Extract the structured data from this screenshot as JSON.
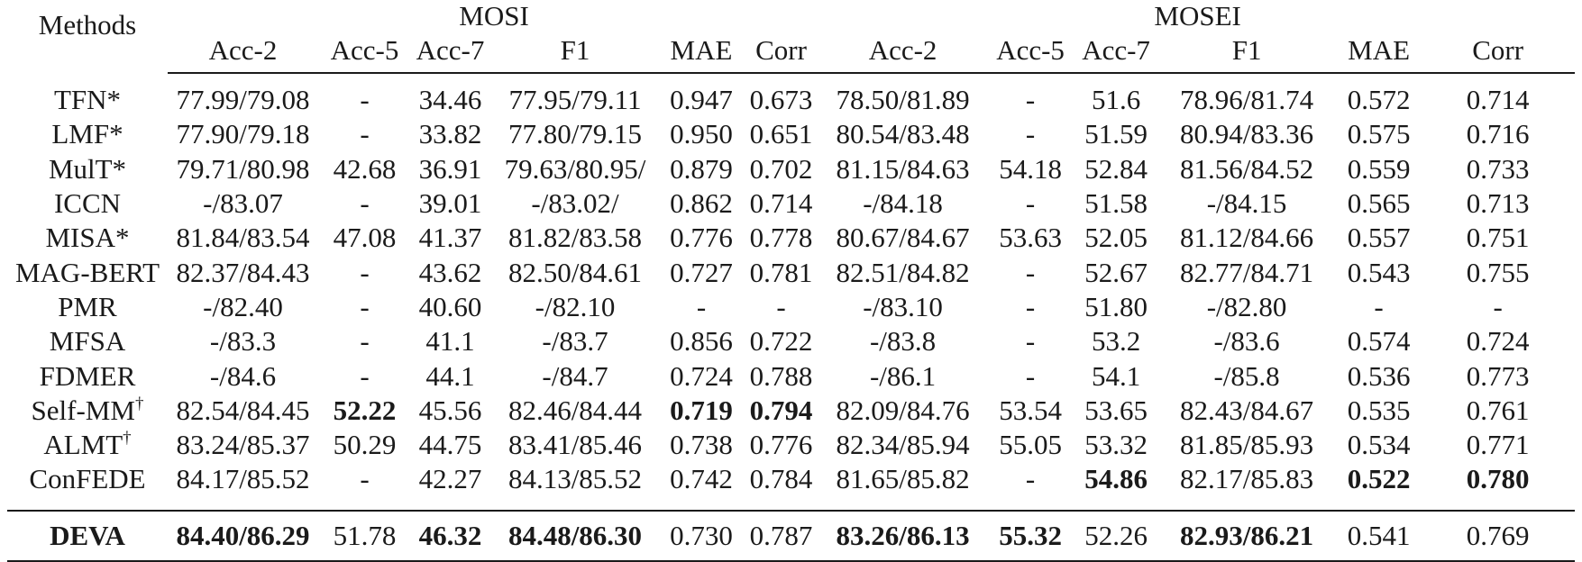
{
  "table": {
    "methods_header": "Methods",
    "groups": [
      "MOSI",
      "MOSEI"
    ],
    "columns": [
      "Acc-2",
      "Acc-5",
      "Acc-7",
      "F1",
      "MAE",
      "Corr",
      "Acc-2",
      "Acc-5",
      "Acc-7",
      "F1",
      "MAE",
      "Corr"
    ],
    "rows": [
      {
        "method": "TFN*",
        "sup": "",
        "bold_method": false,
        "cells": [
          {
            "v": "77.99/79.08",
            "b": false
          },
          {
            "v": "-",
            "b": false
          },
          {
            "v": "34.46",
            "b": false
          },
          {
            "v": "77.95/79.11",
            "b": false
          },
          {
            "v": "0.947",
            "b": false
          },
          {
            "v": "0.673",
            "b": false
          },
          {
            "v": "78.50/81.89",
            "b": false
          },
          {
            "v": "-",
            "b": false
          },
          {
            "v": "51.6",
            "b": false
          },
          {
            "v": "78.96/81.74",
            "b": false
          },
          {
            "v": "0.572",
            "b": false
          },
          {
            "v": "0.714",
            "b": false
          }
        ]
      },
      {
        "method": "LMF*",
        "sup": "",
        "bold_method": false,
        "cells": [
          {
            "v": "77.90/79.18",
            "b": false
          },
          {
            "v": "-",
            "b": false
          },
          {
            "v": "33.82",
            "b": false
          },
          {
            "v": "77.80/79.15",
            "b": false
          },
          {
            "v": "0.950",
            "b": false
          },
          {
            "v": "0.651",
            "b": false
          },
          {
            "v": "80.54/83.48",
            "b": false
          },
          {
            "v": "-",
            "b": false
          },
          {
            "v": "51.59",
            "b": false
          },
          {
            "v": "80.94/83.36",
            "b": false
          },
          {
            "v": "0.575",
            "b": false
          },
          {
            "v": "0.716",
            "b": false
          }
        ]
      },
      {
        "method": "MulT*",
        "sup": "",
        "bold_method": false,
        "cells": [
          {
            "v": "79.71/80.98",
            "b": false
          },
          {
            "v": "42.68",
            "b": false
          },
          {
            "v": "36.91",
            "b": false
          },
          {
            "v": "79.63/80.95/",
            "b": false
          },
          {
            "v": "0.879",
            "b": false
          },
          {
            "v": "0.702",
            "b": false
          },
          {
            "v": "81.15/84.63",
            "b": false
          },
          {
            "v": "54.18",
            "b": false
          },
          {
            "v": "52.84",
            "b": false
          },
          {
            "v": "81.56/84.52",
            "b": false
          },
          {
            "v": "0.559",
            "b": false
          },
          {
            "v": "0.733",
            "b": false
          }
        ]
      },
      {
        "method": "ICCN",
        "sup": "",
        "bold_method": false,
        "cells": [
          {
            "v": "-/83.07",
            "b": false
          },
          {
            "v": "-",
            "b": false
          },
          {
            "v": "39.01",
            "b": false
          },
          {
            "v": "-/83.02/",
            "b": false
          },
          {
            "v": "0.862",
            "b": false
          },
          {
            "v": "0.714",
            "b": false
          },
          {
            "v": "-/84.18",
            "b": false
          },
          {
            "v": "-",
            "b": false
          },
          {
            "v": "51.58",
            "b": false
          },
          {
            "v": "-/84.15",
            "b": false
          },
          {
            "v": "0.565",
            "b": false
          },
          {
            "v": "0.713",
            "b": false
          }
        ]
      },
      {
        "method": "MISA*",
        "sup": "",
        "bold_method": false,
        "cells": [
          {
            "v": "81.84/83.54",
            "b": false
          },
          {
            "v": "47.08",
            "b": false
          },
          {
            "v": "41.37",
            "b": false
          },
          {
            "v": "81.82/83.58",
            "b": false
          },
          {
            "v": "0.776",
            "b": false
          },
          {
            "v": "0.778",
            "b": false
          },
          {
            "v": "80.67/84.67",
            "b": false
          },
          {
            "v": "53.63",
            "b": false
          },
          {
            "v": "52.05",
            "b": false
          },
          {
            "v": "81.12/84.66",
            "b": false
          },
          {
            "v": "0.557",
            "b": false
          },
          {
            "v": "0.751",
            "b": false
          }
        ]
      },
      {
        "method": "MAG-BERT",
        "sup": "",
        "bold_method": false,
        "cells": [
          {
            "v": "82.37/84.43",
            "b": false
          },
          {
            "v": "-",
            "b": false
          },
          {
            "v": "43.62",
            "b": false
          },
          {
            "v": "82.50/84.61",
            "b": false
          },
          {
            "v": "0.727",
            "b": false
          },
          {
            "v": "0.781",
            "b": false
          },
          {
            "v": "82.51/84.82",
            "b": false
          },
          {
            "v": "-",
            "b": false
          },
          {
            "v": "52.67",
            "b": false
          },
          {
            "v": "82.77/84.71",
            "b": false
          },
          {
            "v": "0.543",
            "b": false
          },
          {
            "v": "0.755",
            "b": false
          }
        ]
      },
      {
        "method": "PMR",
        "sup": "",
        "bold_method": false,
        "cells": [
          {
            "v": "-/82.40",
            "b": false
          },
          {
            "v": "-",
            "b": false
          },
          {
            "v": "40.60",
            "b": false
          },
          {
            "v": "-/82.10",
            "b": false
          },
          {
            "v": "-",
            "b": false
          },
          {
            "v": "-",
            "b": false
          },
          {
            "v": "-/83.10",
            "b": false
          },
          {
            "v": "-",
            "b": false
          },
          {
            "v": "51.80",
            "b": false
          },
          {
            "v": "-/82.80",
            "b": false
          },
          {
            "v": "-",
            "b": false
          },
          {
            "v": "-",
            "b": false
          }
        ]
      },
      {
        "method": "MFSA",
        "sup": "",
        "bold_method": false,
        "cells": [
          {
            "v": "-/83.3",
            "b": false
          },
          {
            "v": "-",
            "b": false
          },
          {
            "v": "41.1",
            "b": false
          },
          {
            "v": "-/83.7",
            "b": false
          },
          {
            "v": "0.856",
            "b": false
          },
          {
            "v": "0.722",
            "b": false
          },
          {
            "v": "-/83.8",
            "b": false
          },
          {
            "v": "-",
            "b": false
          },
          {
            "v": "53.2",
            "b": false
          },
          {
            "v": "-/83.6",
            "b": false
          },
          {
            "v": "0.574",
            "b": false
          },
          {
            "v": "0.724",
            "b": false
          }
        ]
      },
      {
        "method": "FDMER",
        "sup": "",
        "bold_method": false,
        "cells": [
          {
            "v": "-/84.6",
            "b": false
          },
          {
            "v": "-",
            "b": false
          },
          {
            "v": "44.1",
            "b": false
          },
          {
            "v": "-/84.7",
            "b": false
          },
          {
            "v": "0.724",
            "b": false
          },
          {
            "v": "0.788",
            "b": false
          },
          {
            "v": "-/86.1",
            "b": false
          },
          {
            "v": "-",
            "b": false
          },
          {
            "v": "54.1",
            "b": false
          },
          {
            "v": "-/85.8",
            "b": false
          },
          {
            "v": "0.536",
            "b": false
          },
          {
            "v": "0.773",
            "b": false
          }
        ]
      },
      {
        "method": "Self-MM",
        "sup": "†",
        "bold_method": false,
        "cells": [
          {
            "v": "82.54/84.45",
            "b": false
          },
          {
            "v": "52.22",
            "b": true
          },
          {
            "v": "45.56",
            "b": false
          },
          {
            "v": "82.46/84.44",
            "b": false
          },
          {
            "v": "0.719",
            "b": true
          },
          {
            "v": "0.794",
            "b": true
          },
          {
            "v": "82.09/84.76",
            "b": false
          },
          {
            "v": "53.54",
            "b": false
          },
          {
            "v": "53.65",
            "b": false
          },
          {
            "v": "82.43/84.67",
            "b": false
          },
          {
            "v": "0.535",
            "b": false
          },
          {
            "v": "0.761",
            "b": false
          }
        ]
      },
      {
        "method": "ALMT",
        "sup": "†",
        "bold_method": false,
        "cells": [
          {
            "v": "83.24/85.37",
            "b": false
          },
          {
            "v": "50.29",
            "b": false
          },
          {
            "v": "44.75",
            "b": false
          },
          {
            "v": "83.41/85.46",
            "b": false
          },
          {
            "v": "0.738",
            "b": false
          },
          {
            "v": "0.776",
            "b": false
          },
          {
            "v": "82.34/85.94",
            "b": false
          },
          {
            "v": "55.05",
            "b": false
          },
          {
            "v": "53.32",
            "b": false
          },
          {
            "v": "81.85/85.93",
            "b": false
          },
          {
            "v": "0.534",
            "b": false
          },
          {
            "v": "0.771",
            "b": false
          }
        ]
      },
      {
        "method": "ConFEDE",
        "sup": "",
        "bold_method": false,
        "cells": [
          {
            "v": "84.17/85.52",
            "b": false
          },
          {
            "v": "-",
            "b": false
          },
          {
            "v": "42.27",
            "b": false
          },
          {
            "v": "84.13/85.52",
            "b": false
          },
          {
            "v": "0.742",
            "b": false
          },
          {
            "v": "0.784",
            "b": false
          },
          {
            "v": "81.65/85.82",
            "b": false
          },
          {
            "v": "-",
            "b": false
          },
          {
            "v": "54.86",
            "b": true
          },
          {
            "v": "82.17/85.83",
            "b": false
          },
          {
            "v": "0.522",
            "b": true
          },
          {
            "v": "0.780",
            "b": true
          }
        ]
      }
    ],
    "final_row": {
      "method": "DEVA",
      "sup": "",
      "bold_method": true,
      "cells": [
        {
          "v": "84.40/86.29",
          "b": true
        },
        {
          "v": "51.78",
          "b": false
        },
        {
          "v": "46.32",
          "b": true
        },
        {
          "v": "84.48/86.30",
          "b": true
        },
        {
          "v": "0.730",
          "b": false
        },
        {
          "v": "0.787",
          "b": false
        },
        {
          "v": "83.26/86.13",
          "b": true
        },
        {
          "v": "55.32",
          "b": true
        },
        {
          "v": "52.26",
          "b": false
        },
        {
          "v": "82.93/86.21",
          "b": true
        },
        {
          "v": "0.541",
          "b": false
        },
        {
          "v": "0.769",
          "b": false
        }
      ]
    }
  }
}
